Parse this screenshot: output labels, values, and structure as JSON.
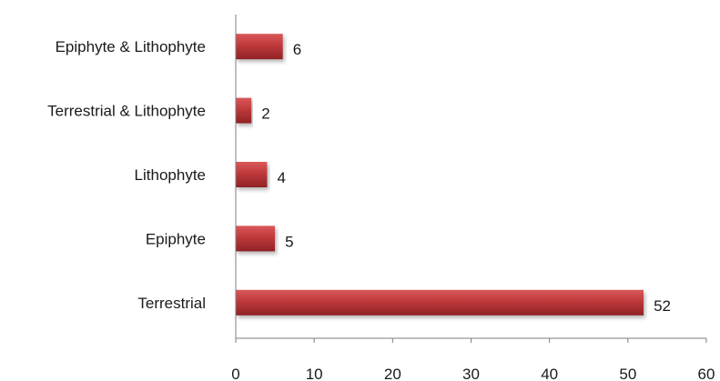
{
  "chart_data": {
    "type": "bar",
    "orientation": "horizontal",
    "categories": [
      "Terrestrial",
      "Epiphyte",
      "Lithophyte",
      "Terrestrial & Lithophyte",
      "Epiphyte & Lithophyte"
    ],
    "values": [
      52,
      5,
      4,
      2,
      6
    ],
    "data_labels": [
      "52",
      "5",
      "4",
      "2",
      "6"
    ],
    "title": "",
    "xlabel": "",
    "ylabel": "",
    "xlim": [
      0,
      60
    ],
    "x_ticks": [
      "0",
      "10",
      "20",
      "30",
      "40",
      "50",
      "60"
    ],
    "grid": false,
    "legend": "none",
    "bar_color": "#c0393b",
    "bar_color_dark": "#8f2224",
    "axis_color": "#7f7f7f"
  }
}
